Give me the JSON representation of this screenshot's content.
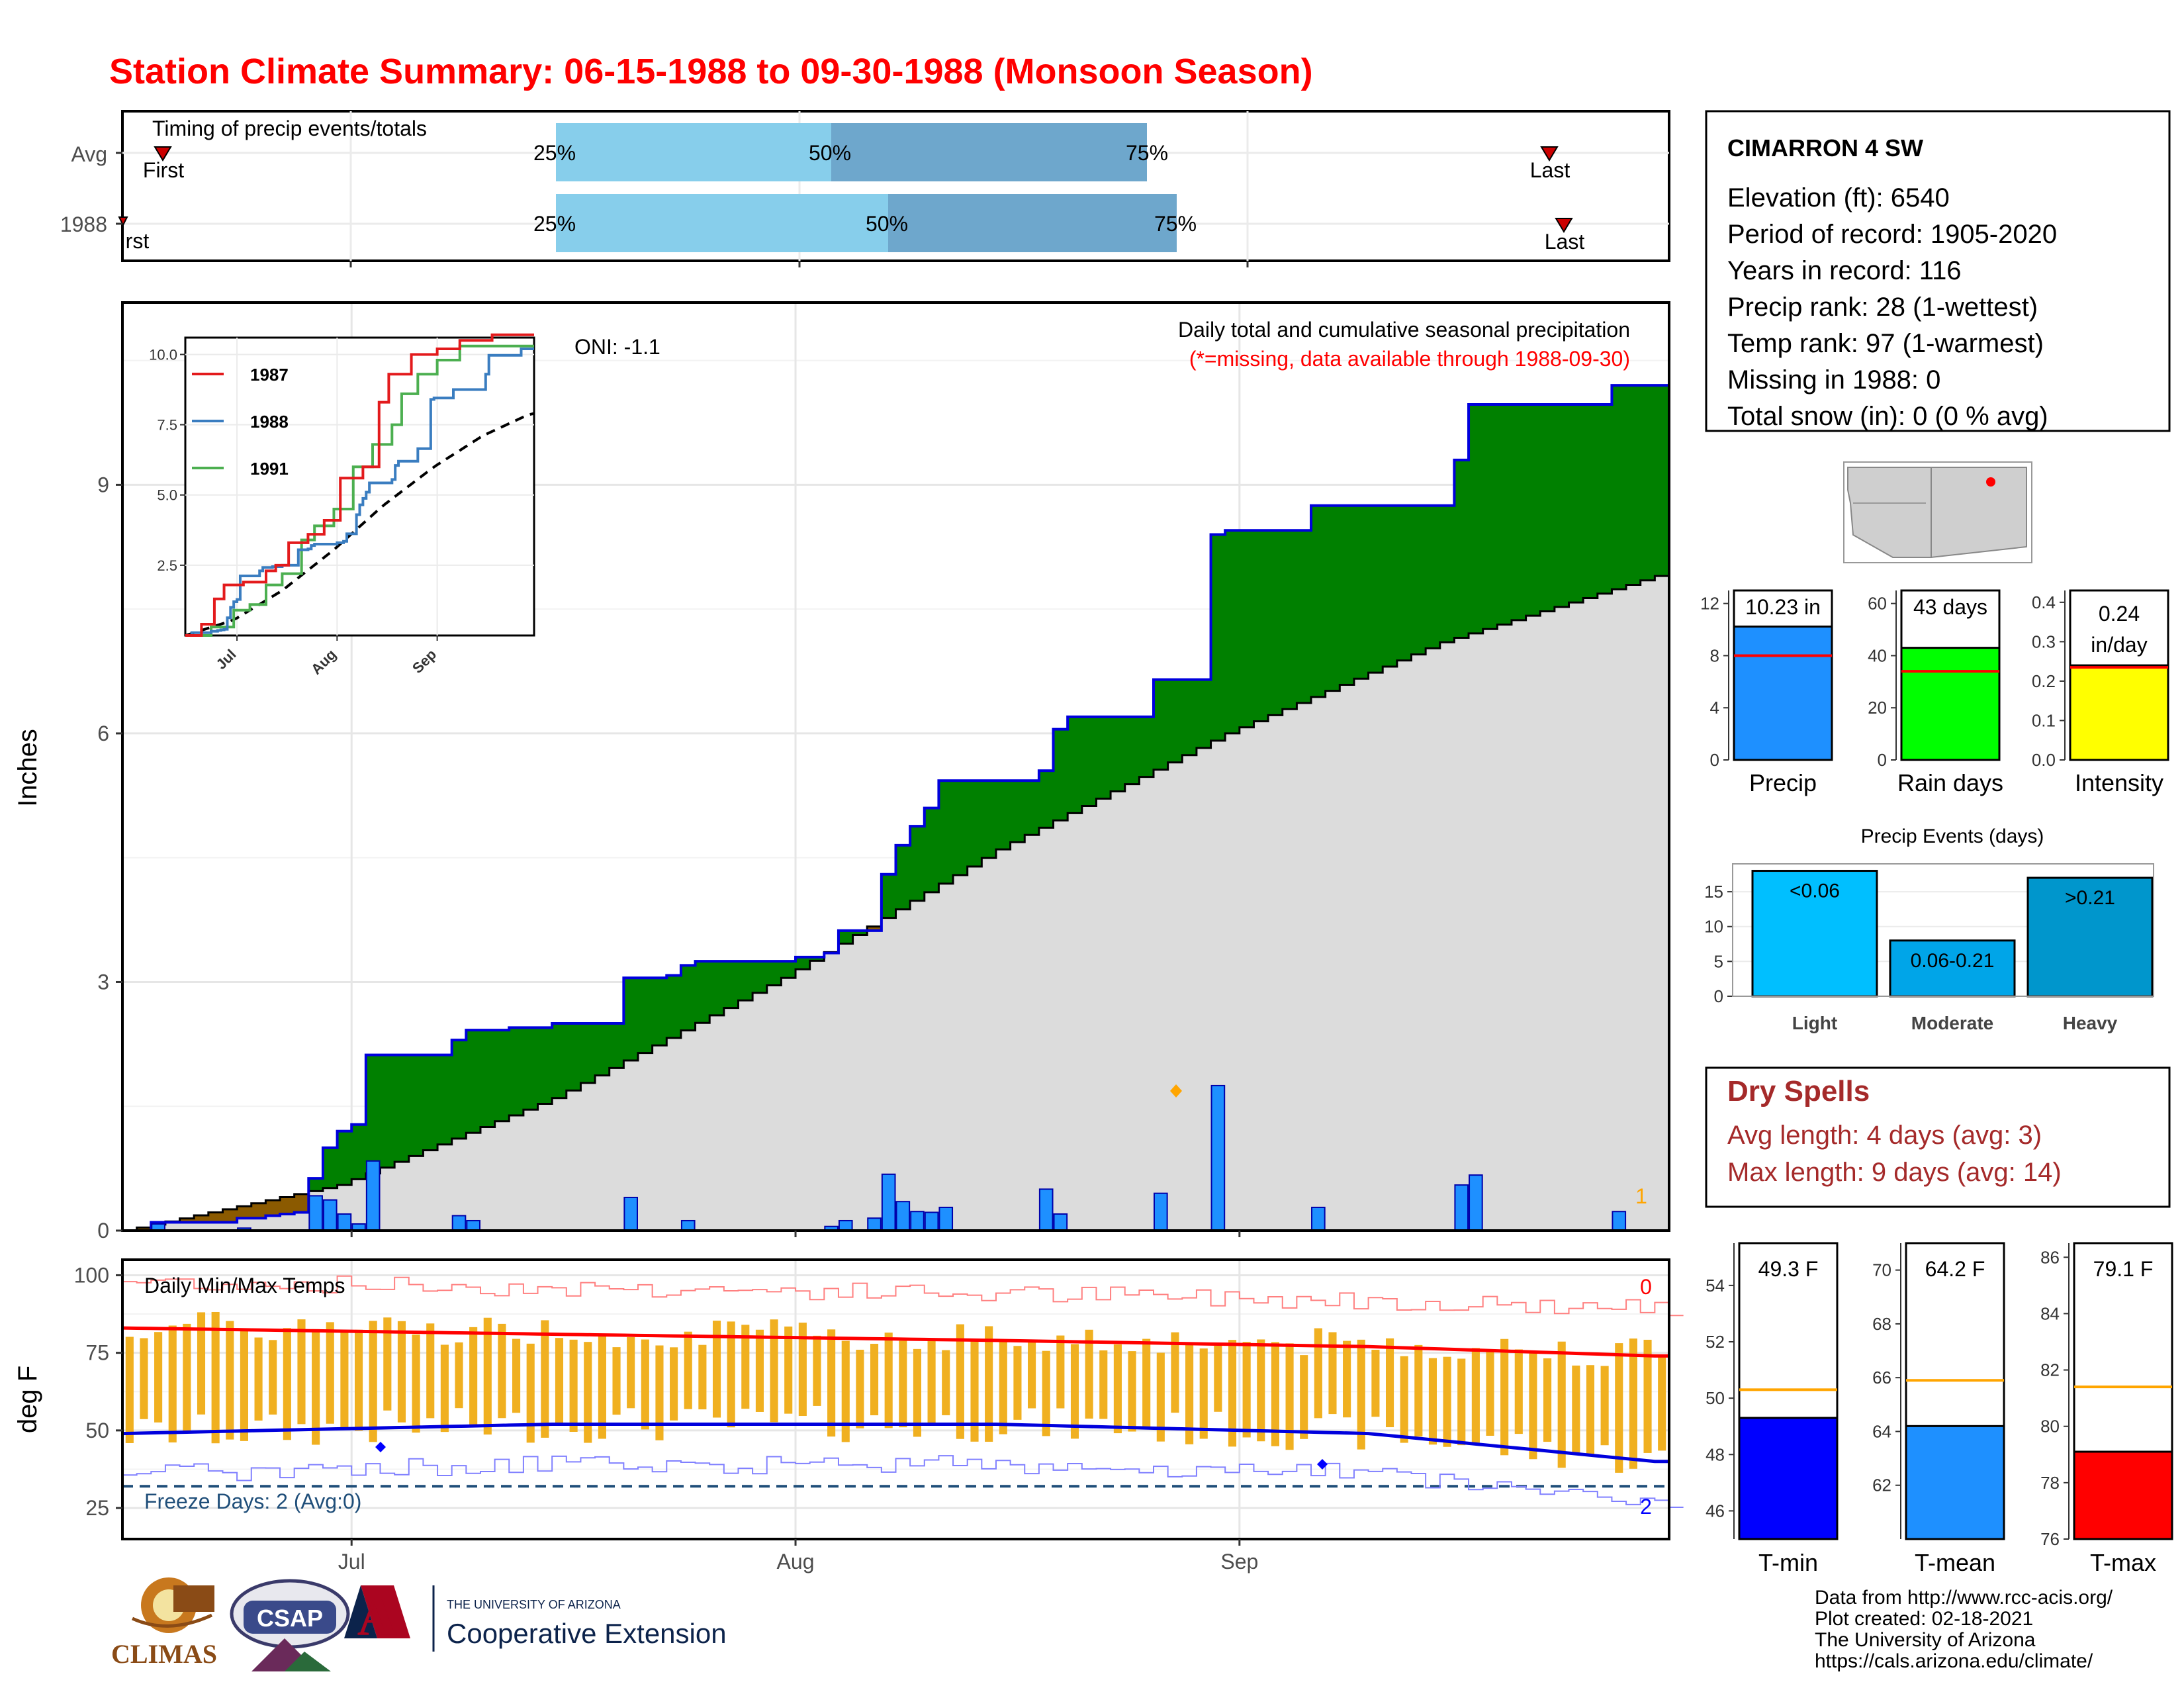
{
  "title": "Station Climate Summary: 06-15-1988 to 09-30-1988 (Monsoon Season)",
  "colors": {
    "title": "#ff0000",
    "above_avg": "#008000",
    "below_avg": "#8b5a00",
    "normal_fill": "#dcdcdc",
    "bars": "#1e90ff",
    "tmax_line": "#ff0000",
    "tmin_line": "#0000ff",
    "range_bar": "#f0b020",
    "dry_spells": "#a52a2a"
  },
  "timing_panel": {
    "title": "Timing of precip events/totals",
    "rows": [
      {
        "label": "Avg",
        "first_label": "First",
        "last_label": "Last",
        "pct25": "25%",
        "pct50": "50%",
        "pct75": "75%"
      },
      {
        "label": "1988",
        "first_label": "First",
        "last_label": "Last",
        "pct25": "25%",
        "pct50": "50%",
        "pct75": "75%"
      }
    ]
  },
  "station": {
    "name": "CIMARRON 4 SW",
    "lines": [
      "Elevation (ft): 6540",
      "Period of record: 1905-2020",
      "Years in record: 116",
      "Precip rank: 28 (1-wettest)",
      "Temp rank: 97 (1-warmest)",
      "Missing in 1988: 0",
      "Total snow (in): 0 (0 % avg)"
    ]
  },
  "precip_panel": {
    "title": "Daily total and cumulative seasonal precipitation",
    "subtitle": "(*=missing, data available through 1988-09-30)",
    "oni": "ONI: -1.1",
    "ylabel": "Inches",
    "yticks": [
      "0",
      "3",
      "6",
      "9"
    ],
    "corner_count": "1"
  },
  "inset": {
    "legend": [
      "1987",
      "1988",
      "1991"
    ],
    "yticks": [
      "2.5",
      "5.0",
      "7.5",
      "10.0"
    ],
    "xticks": [
      "Jul",
      "Aug",
      "Sep"
    ]
  },
  "temp_panel": {
    "title": "Daily Min/Max Temps",
    "ylabel": "deg F",
    "yticks": [
      "25",
      "50",
      "75",
      "100"
    ],
    "freeze": "Freeze Days: 2 (Avg:0)",
    "top_count": "0",
    "bottom_count": "2",
    "xticks": [
      "Jul",
      "Aug",
      "Sep"
    ]
  },
  "mini_bars": [
    {
      "label": "Precip",
      "value_text": "10.23 in",
      "value": 10.23,
      "avg": 8,
      "ymax": 13,
      "yticks": [
        "0",
        "4",
        "8",
        "12"
      ],
      "color": "#1e90ff"
    },
    {
      "label": "Rain days",
      "value_text": "43 days",
      "value": 43,
      "avg": 34,
      "ymax": 65,
      "yticks": [
        "0",
        "20",
        "40",
        "60"
      ],
      "color": "#00ff00"
    },
    {
      "label": "Intensity",
      "value_text": "0.24 in/day",
      "value": 0.24,
      "avg": 0.235,
      "ymax": 0.43,
      "yticks": [
        "0.0",
        "0.1",
        "0.2",
        "0.3",
        "0.4"
      ],
      "color": "#ffff00"
    }
  ],
  "precip_events": {
    "title": "Precip Events (days)",
    "yticks": [
      "0",
      "5",
      "10",
      "15"
    ],
    "bars": [
      {
        "category": "Light",
        "label": "<0.06",
        "value": 18,
        "color": "#00bfff"
      },
      {
        "category": "Moderate",
        "label": "0.06-0.21",
        "value": 8,
        "color": "#00a5e8"
      },
      {
        "category": "Heavy",
        "label": ">0.21",
        "value": 17,
        "color": "#0096cc"
      }
    ]
  },
  "dry_spells": {
    "title": "Dry Spells",
    "avg_line": "Avg length: 4 days (avg: 3)",
    "max_line": "Max length: 9 days (avg: 14)"
  },
  "temp_bars": [
    {
      "label": "T-min",
      "value_text": "49.3 F",
      "value": 49.3,
      "avg": 50.3,
      "ymin": 45,
      "ymax": 55.5,
      "yticks": [
        "46",
        "48",
        "50",
        "52",
        "54"
      ],
      "color": "#0000ff"
    },
    {
      "label": "T-mean",
      "value_text": "64.2 F",
      "value": 64.2,
      "avg": 65.9,
      "ymin": 60,
      "ymax": 71,
      "yticks": [
        "62",
        "64",
        "66",
        "68",
        "70"
      ],
      "color": "#1e90ff"
    },
    {
      "label": "T-max",
      "value_text": "79.1 F",
      "value": 79.1,
      "avg": 81.4,
      "ymin": 76,
      "ymax": 86.5,
      "yticks": [
        "76",
        "78",
        "80",
        "82",
        "84",
        "86"
      ],
      "color": "#ff0000"
    }
  ],
  "logos": {
    "climas": "CLIMAS",
    "csap": "CSAP",
    "ua_top": "THE UNIVERSITY OF ARIZONA",
    "ua_bottom": "Cooperative Extension"
  },
  "footer": [
    "Data from http://www.rcc-acis.org/",
    "Plot created: 02-18-2021",
    "The University of Arizona",
    "https://cals.arizona.edu/climate/"
  ],
  "chart_data": {
    "type": "line",
    "title": "Daily total and cumulative seasonal precipitation",
    "ylabel": "Inches",
    "xlabel": "",
    "ylim": [
      0,
      11.2
    ],
    "xlim": [
      "1988-06-15",
      "1988-09-30"
    ],
    "x_ticks": [
      "Jul",
      "Aug",
      "Sep"
    ],
    "cumulative_1988_steps": [
      {
        "date": "1988-06-17",
        "value": 0.1
      },
      {
        "date": "1988-06-23",
        "value": 0.15
      },
      {
        "date": "1988-06-25",
        "value": 0.18
      },
      {
        "date": "1988-06-26",
        "value": 0.2
      },
      {
        "date": "1988-06-27",
        "value": 0.22
      },
      {
        "date": "1988-06-28",
        "value": 0.63
      },
      {
        "date": "1988-06-29",
        "value": 1.0
      },
      {
        "date": "1988-06-30",
        "value": 1.2
      },
      {
        "date": "1988-07-01",
        "value": 1.28
      },
      {
        "date": "1988-07-02",
        "value": 2.12
      },
      {
        "date": "1988-07-08",
        "value": 2.3
      },
      {
        "date": "1988-07-09",
        "value": 2.42
      },
      {
        "date": "1988-07-12",
        "value": 2.45
      },
      {
        "date": "1988-07-15",
        "value": 2.5
      },
      {
        "date": "1988-07-20",
        "value": 3.05
      },
      {
        "date": "1988-07-23",
        "value": 3.08
      },
      {
        "date": "1988-07-24",
        "value": 3.2
      },
      {
        "date": "1988-07-25",
        "value": 3.25
      },
      {
        "date": "1988-08-01",
        "value": 3.3
      },
      {
        "date": "1988-08-03",
        "value": 3.35
      },
      {
        "date": "1988-08-04",
        "value": 3.62
      },
      {
        "date": "1988-08-07",
        "value": 4.3
      },
      {
        "date": "1988-08-08",
        "value": 4.65
      },
      {
        "date": "1988-08-09",
        "value": 4.88
      },
      {
        "date": "1988-08-10",
        "value": 5.1
      },
      {
        "date": "1988-08-11",
        "value": 5.43
      },
      {
        "date": "1988-08-18",
        "value": 5.55
      },
      {
        "date": "1988-08-19",
        "value": 6.05
      },
      {
        "date": "1988-08-20",
        "value": 6.2
      },
      {
        "date": "1988-08-26",
        "value": 6.65
      },
      {
        "date": "1988-08-30",
        "value": 8.4
      },
      {
        "date": "1988-08-31",
        "value": 8.45
      },
      {
        "date": "1988-09-06",
        "value": 8.75
      },
      {
        "date": "1988-09-16",
        "value": 9.3
      },
      {
        "date": "1988-09-17",
        "value": 9.97
      },
      {
        "date": "1988-09-27",
        "value": 10.2
      }
    ],
    "normal_cumulative": [
      {
        "date": "1988-06-15",
        "value": 0.0
      },
      {
        "date": "1988-06-30",
        "value": 0.55
      },
      {
        "date": "1988-07-15",
        "value": 1.6
      },
      {
        "date": "1988-07-31",
        "value": 3.05
      },
      {
        "date": "1988-08-15",
        "value": 4.6
      },
      {
        "date": "1988-08-31",
        "value": 6.0
      },
      {
        "date": "1988-09-15",
        "value": 7.1
      },
      {
        "date": "1988-09-30",
        "value": 7.9
      }
    ],
    "daily_precip_1988": [
      {
        "date": "1988-06-17",
        "value": 0.08
      },
      {
        "date": "1988-06-23",
        "value": 0.03
      },
      {
        "date": "1988-06-28",
        "value": 0.42
      },
      {
        "date": "1988-06-29",
        "value": 0.37
      },
      {
        "date": "1988-06-30",
        "value": 0.2
      },
      {
        "date": "1988-07-01",
        "value": 0.08
      },
      {
        "date": "1988-07-02",
        "value": 0.84
      },
      {
        "date": "1988-07-08",
        "value": 0.18
      },
      {
        "date": "1988-07-09",
        "value": 0.12
      },
      {
        "date": "1988-07-20",
        "value": 0.4
      },
      {
        "date": "1988-07-24",
        "value": 0.12
      },
      {
        "date": "1988-08-03",
        "value": 0.05
      },
      {
        "date": "1988-08-04",
        "value": 0.12
      },
      {
        "date": "1988-08-06",
        "value": 0.15
      },
      {
        "date": "1988-08-07",
        "value": 0.68
      },
      {
        "date": "1988-08-08",
        "value": 0.35
      },
      {
        "date": "1988-08-09",
        "value": 0.23
      },
      {
        "date": "1988-08-10",
        "value": 0.22
      },
      {
        "date": "1988-08-11",
        "value": 0.28
      },
      {
        "date": "1988-08-18",
        "value": 0.5
      },
      {
        "date": "1988-08-19",
        "value": 0.2
      },
      {
        "date": "1988-08-26",
        "value": 0.45
      },
      {
        "date": "1988-08-30",
        "value": 1.75
      },
      {
        "date": "1988-09-06",
        "value": 0.28
      },
      {
        "date": "1988-09-16",
        "value": 0.55
      },
      {
        "date": "1988-09-17",
        "value": 0.67
      },
      {
        "date": "1988-09-27",
        "value": 0.23
      }
    ],
    "temperature": {
      "ylim": [
        15,
        105
      ],
      "avg_max": [
        {
          "date": "1988-06-15",
          "value": 83
        },
        {
          "date": "1988-07-15",
          "value": 81
        },
        {
          "date": "1988-08-15",
          "value": 79
        },
        {
          "date": "1988-09-10",
          "value": 77
        },
        {
          "date": "1988-09-30",
          "value": 74
        }
      ],
      "avg_min": [
        {
          "date": "1988-06-15",
          "value": 49
        },
        {
          "date": "1988-07-15",
          "value": 52
        },
        {
          "date": "1988-08-15",
          "value": 52
        },
        {
          "date": "1988-09-10",
          "value": 49
        },
        {
          "date": "1988-09-30",
          "value": 40
        }
      ],
      "freeze_line": 32
    }
  }
}
